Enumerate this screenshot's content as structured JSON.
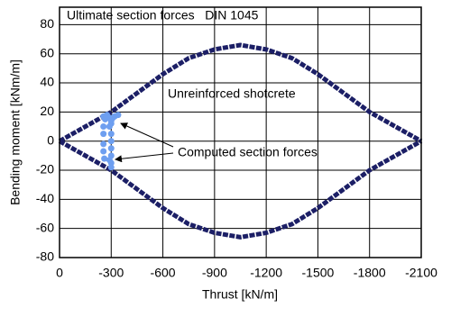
{
  "chart_data": {
    "type": "scatter",
    "title": "Ultimate section forces   DIN 1045",
    "x_label": "Thrust [kN/m]",
    "y_label": "Bending moment [kNm/m]",
    "annotations": [
      "Unreinforced shotcrete",
      "Computed section forces"
    ],
    "xlim": [
      0,
      -2100
    ],
    "ylim": [
      -80,
      92
    ],
    "xticks": [
      0,
      -300,
      -600,
      -900,
      -1200,
      -1500,
      -1800,
      -2100
    ],
    "yticks": [
      -80,
      -60,
      -40,
      -20,
      0,
      20,
      40,
      60,
      80
    ],
    "grid": true,
    "series": [
      {
        "type": "line",
        "color": "#1c1f66",
        "x": [
          0,
          -150,
          -300,
          -450,
          -600,
          -750,
          -900,
          -1050,
          -1200,
          -1350,
          -1500,
          -1650,
          -1800,
          -1950,
          -2100
        ],
        "values": [
          0,
          10,
          20,
          33,
          46,
          57,
          63,
          66,
          63,
          57,
          46,
          33,
          20,
          10,
          0
        ]
      },
      {
        "type": "line",
        "color": "#1c1f66",
        "x": [
          0,
          -150,
          -300,
          -450,
          -600,
          -750,
          -900,
          -1050,
          -1200,
          -1350,
          -1500,
          -1650,
          -1800,
          -1950,
          -2100
        ],
        "values": [
          0,
          -10,
          -20,
          -33,
          -46,
          -57,
          -63,
          -66,
          -63,
          -57,
          -46,
          -33,
          -20,
          -10,
          0
        ]
      },
      {
        "type": "scatter",
        "color": "#6e9ff0",
        "x": [
          -255,
          -265,
          -275,
          -290,
          -300,
          -310,
          -320,
          -340,
          -255,
          -255,
          -255,
          -255,
          -260,
          -290,
          -300,
          -300,
          -300,
          -300,
          -300,
          -300,
          -290,
          -300
        ],
        "values": [
          17,
          15,
          18,
          16,
          14,
          16,
          17,
          18,
          10,
          5,
          -2,
          -7,
          -12,
          10,
          5,
          0,
          -5,
          -10,
          -15,
          -18,
          -13,
          12
        ]
      }
    ]
  }
}
